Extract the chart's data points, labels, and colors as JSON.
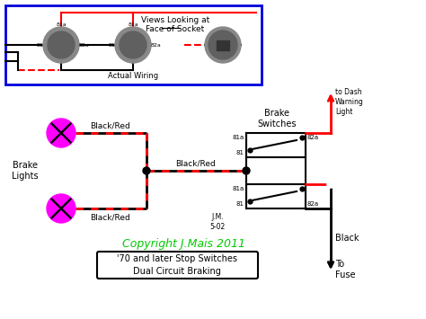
{
  "bg_color": "#ffffff",
  "blue_border": "#0000dd",
  "red_color": "#ff0000",
  "black_color": "#000000",
  "magenta_color": "#ff00ff",
  "gray_dark": "#606060",
  "gray_mid": "#888888",
  "green_color": "#00cc00",
  "fig_w": 4.74,
  "fig_h": 3.55,
  "dpi": 100,
  "copyright_text": "Copyright J.Mais 2011",
  "subtitle_text": "'70 and later Stop Switches\nDual Circuit Braking",
  "jm_text": "J.M.\n5-02",
  "views_title": "Views Looking at",
  "face_text": "Face of Socket",
  "actual_wiring": "Actual Wiring",
  "brake_lights_label": "Brake\nLights",
  "brake_switches_label": "Brake\nSwitches",
  "to_dash_label": "to Dash\nWarning\nLight",
  "black_label": "Black",
  "to_fuse_label": "To\nFuse",
  "br1": "Black/Red",
  "br2": "Black/Red",
  "br3": "Black/Red"
}
